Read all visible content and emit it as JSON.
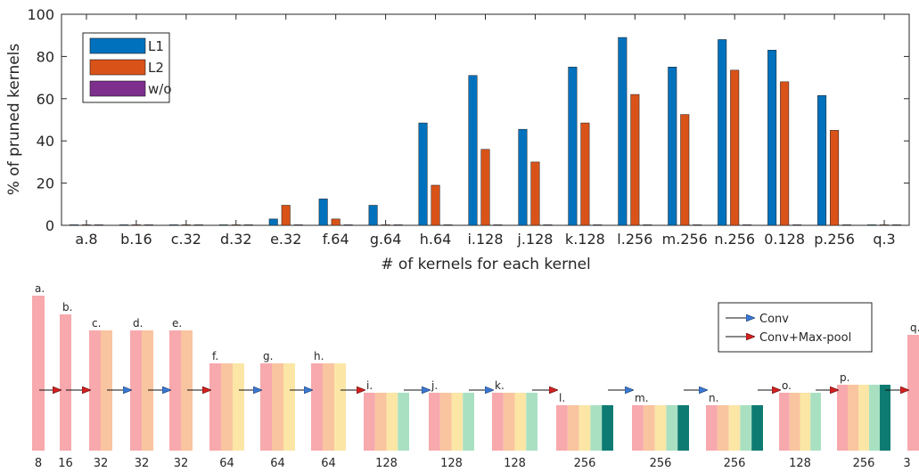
{
  "chart_data": {
    "type": "bar",
    "ylabel": "% of pruned kernels",
    "xlabel": "# of kernels for each kernel",
    "ylim": [
      0,
      100
    ],
    "yticks": [
      0,
      20,
      40,
      60,
      80,
      100
    ],
    "grid": false,
    "legend_position": "top-left",
    "categories": [
      "a.8",
      "b.16",
      "c.32",
      "d.32",
      "e.32",
      "f.64",
      "g.64",
      "h.64",
      "i.128",
      "j.128",
      "k.128",
      "l.256",
      "m.256",
      "n.256",
      "0.128",
      "p.256",
      "q.3"
    ],
    "series": [
      {
        "name": "L1",
        "color": "#0072BD",
        "values": [
          0,
          0,
          0,
          0,
          3,
          12.5,
          9.5,
          48.5,
          71,
          45.5,
          75,
          89,
          75,
          88,
          83,
          61.5,
          0
        ]
      },
      {
        "name": "L2",
        "color": "#D95319",
        "values": [
          0,
          0,
          0,
          0,
          9.5,
          3,
          0,
          19,
          36,
          30,
          48.5,
          62,
          52.5,
          73.5,
          68,
          45,
          0
        ]
      },
      {
        "name": "w/o",
        "color": "#7E2F8E",
        "values": [
          0,
          0,
          0,
          0,
          0,
          0,
          0,
          0,
          0,
          0,
          0,
          0,
          0,
          0,
          0,
          0,
          0
        ]
      }
    ]
  },
  "diagram": {
    "legend": [
      {
        "label": "Conv",
        "arrow_color": "#3a78d4"
      },
      {
        "label": "Conv+Max-pool",
        "arrow_color": "#d42020"
      }
    ],
    "layers": [
      {
        "letter": "a.",
        "count": "8"
      },
      {
        "letter": "b.",
        "count": "16"
      },
      {
        "letter": "c.",
        "count": "32"
      },
      {
        "letter": "d.",
        "count": "32"
      },
      {
        "letter": "e.",
        "count": "32"
      },
      {
        "letter": "f.",
        "count": "64"
      },
      {
        "letter": "g.",
        "count": "64"
      },
      {
        "letter": "h.",
        "count": "64"
      },
      {
        "letter": "i.",
        "count": "128"
      },
      {
        "letter": "j.",
        "count": "128"
      },
      {
        "letter": "k.",
        "count": "128"
      },
      {
        "letter": "l.",
        "count": "256"
      },
      {
        "letter": "m.",
        "count": "256"
      },
      {
        "letter": "n.",
        "count": "256"
      },
      {
        "letter": "o.",
        "count": "128"
      },
      {
        "letter": "p.",
        "count": "256"
      },
      {
        "letter": "q.",
        "count": "3"
      }
    ],
    "arrow_types": [
      "pool",
      "pool",
      "conv",
      "conv",
      "pool",
      "conv",
      "conv",
      "pool",
      "conv",
      "conv",
      "pool",
      "conv",
      "conv",
      "pool",
      "pool",
      "pool"
    ],
    "layer_colors": [
      "#f7a9ad",
      "#f9c4a0",
      "#fbe6a6",
      "#a9e0c2",
      "#0e7b72"
    ]
  }
}
